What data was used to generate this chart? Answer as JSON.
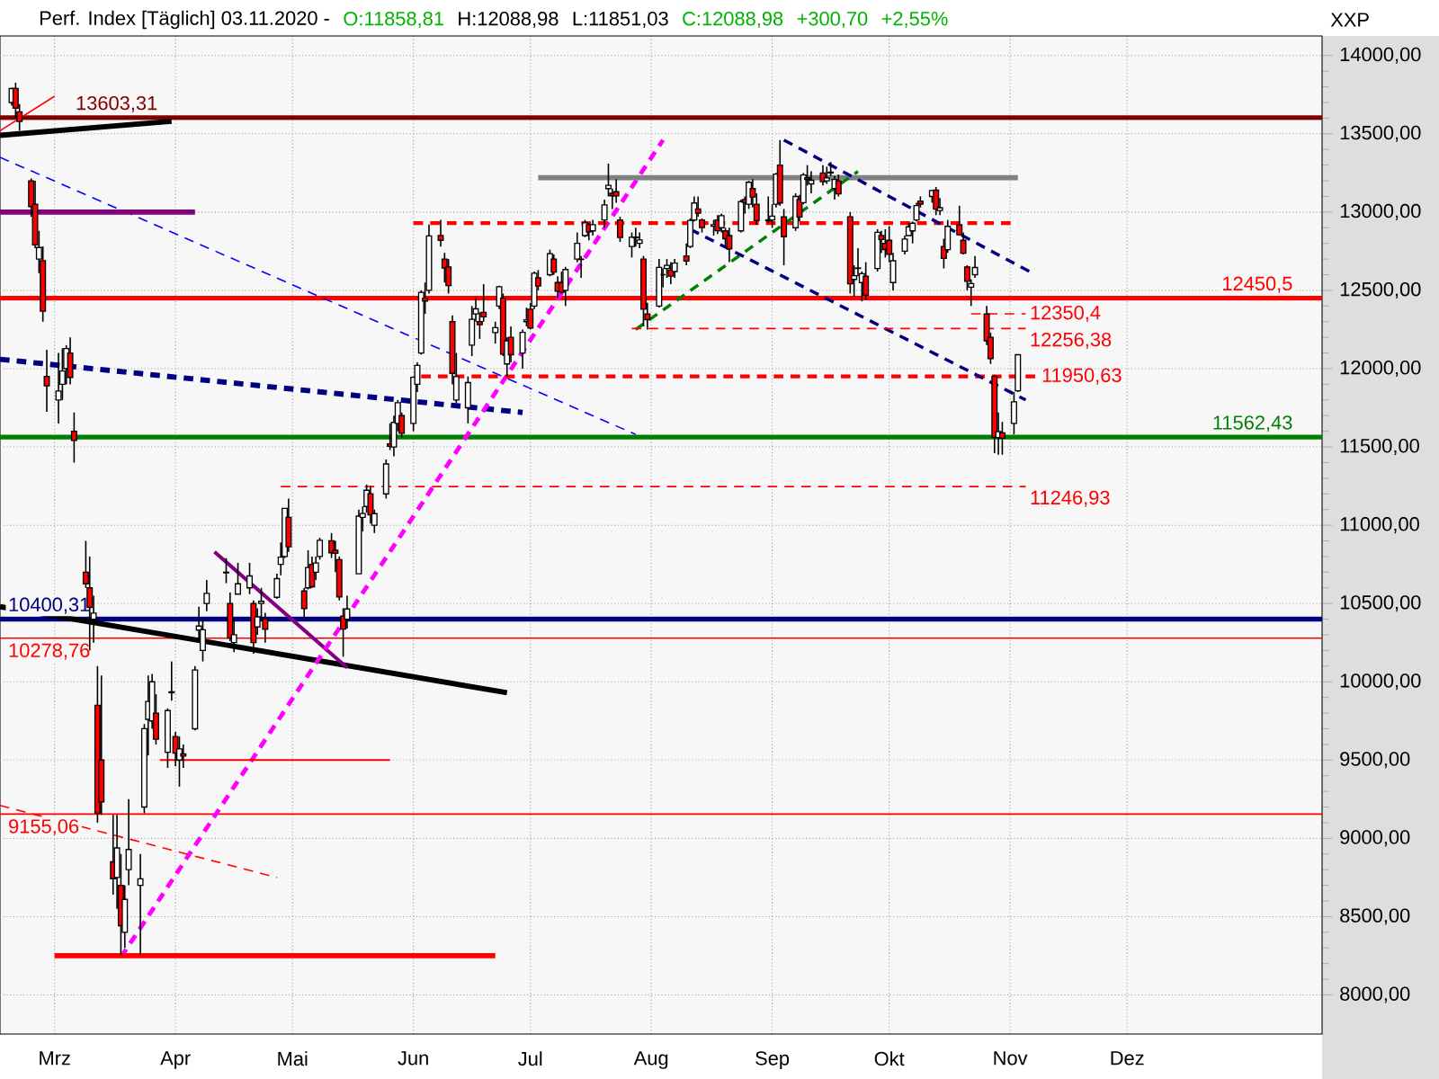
{
  "chart_data": {
    "type": "candlestick",
    "title": "Perf. Index [Täglich] 03.11.2020 -",
    "ylabel": "XXP",
    "annotations": [
      "O:11858,81",
      "H:12088,98",
      "L:11851,03",
      "C:12088,98",
      "+300,70",
      "+2,55%"
    ],
    "grid": true,
    "xlim": [
      "2020-02-16",
      "2021-01-20"
    ],
    "xticks": [
      {
        "value": "2020-03-01",
        "label": "Mrz"
      },
      {
        "value": "2020-04-01",
        "label": "Apr"
      },
      {
        "value": "2020-05-01",
        "label": "Mai"
      },
      {
        "value": "2020-06-01",
        "label": "Jun"
      },
      {
        "value": "2020-07-01",
        "label": "Jul"
      },
      {
        "value": "2020-08-01",
        "label": "Aug"
      },
      {
        "value": "2020-09-01",
        "label": "Sep"
      },
      {
        "value": "2020-10-01",
        "label": "Okt"
      },
      {
        "value": "2020-11-01",
        "label": "Nov"
      },
      {
        "value": "2020-12-01",
        "label": "Dez"
      }
    ],
    "ylim": [
      7750,
      14125
    ],
    "yticks": [
      {
        "value": 8000,
        "label": "8000,00"
      },
      {
        "value": 8500,
        "label": "8500,00"
      },
      {
        "value": 9000,
        "label": "9000,00"
      },
      {
        "value": 9500,
        "label": "9500,00"
      },
      {
        "value": 10000,
        "label": "10000,00"
      },
      {
        "value": 10500,
        "label": "10500,00"
      },
      {
        "value": 11000,
        "label": "11000,00"
      },
      {
        "value": 11500,
        "label": "11500,00"
      },
      {
        "value": 12000,
        "label": "12000,00"
      },
      {
        "value": 12500,
        "label": "12500,00"
      },
      {
        "value": 13000,
        "label": "13000,00"
      },
      {
        "value": 13500,
        "label": "13500,00"
      },
      {
        "value": 14000,
        "label": "14000,00"
      }
    ],
    "x": [
      "2020-02-19",
      "2020-02-20",
      "2020-02-21",
      "2020-02-24",
      "2020-02-25",
      "2020-02-26",
      "2020-02-27",
      "2020-02-28",
      "2020-03-02",
      "2020-03-03",
      "2020-03-04",
      "2020-03-05",
      "2020-03-06",
      "2020-03-09",
      "2020-03-10",
      "2020-03-11",
      "2020-03-12",
      "2020-03-13",
      "2020-03-16",
      "2020-03-17",
      "2020-03-18",
      "2020-03-19",
      "2020-03-20",
      "2020-03-23",
      "2020-03-24",
      "2020-03-25",
      "2020-03-26",
      "2020-03-27",
      "2020-03-30",
      "2020-03-31",
      "2020-04-01",
      "2020-04-02",
      "2020-04-03",
      "2020-04-06",
      "2020-04-07",
      "2020-04-08",
      "2020-04-09",
      "2020-04-14",
      "2020-04-15",
      "2020-04-16",
      "2020-04-17",
      "2020-04-20",
      "2020-04-21",
      "2020-04-22",
      "2020-04-23",
      "2020-04-24",
      "2020-04-27",
      "2020-04-28",
      "2020-04-29",
      "2020-04-30",
      "2020-05-04",
      "2020-05-05",
      "2020-05-06",
      "2020-05-07",
      "2020-05-08",
      "2020-05-11",
      "2020-05-12",
      "2020-05-13",
      "2020-05-14",
      "2020-05-15",
      "2020-05-18",
      "2020-05-19",
      "2020-05-20",
      "2020-05-21",
      "2020-05-22",
      "2020-05-25",
      "2020-05-26",
      "2020-05-27",
      "2020-05-28",
      "2020-05-29",
      "2020-06-01",
      "2020-06-02",
      "2020-06-03",
      "2020-06-04",
      "2020-06-05",
      "2020-06-08",
      "2020-06-09",
      "2020-06-10",
      "2020-06-11",
      "2020-06-12",
      "2020-06-15",
      "2020-06-16",
      "2020-06-17",
      "2020-06-18",
      "2020-06-19",
      "2020-06-22",
      "2020-06-23",
      "2020-06-24",
      "2020-06-25",
      "2020-06-26",
      "2020-06-29",
      "2020-06-30",
      "2020-07-01",
      "2020-07-02",
      "2020-07-03",
      "2020-07-06",
      "2020-07-07",
      "2020-07-08",
      "2020-07-09",
      "2020-07-10",
      "2020-07-13",
      "2020-07-14",
      "2020-07-15",
      "2020-07-16",
      "2020-07-17",
      "2020-07-20",
      "2020-07-21",
      "2020-07-22",
      "2020-07-23",
      "2020-07-24",
      "2020-07-27",
      "2020-07-28",
      "2020-07-29",
      "2020-07-30",
      "2020-07-31",
      "2020-08-03",
      "2020-08-04",
      "2020-08-05",
      "2020-08-06",
      "2020-08-07",
      "2020-08-10",
      "2020-08-11",
      "2020-08-12",
      "2020-08-13",
      "2020-08-14",
      "2020-08-17",
      "2020-08-18",
      "2020-08-19",
      "2020-08-20",
      "2020-08-21",
      "2020-08-24",
      "2020-08-25",
      "2020-08-26",
      "2020-08-27",
      "2020-08-28",
      "2020-08-31",
      "2020-09-01",
      "2020-09-02",
      "2020-09-03",
      "2020-09-04",
      "2020-09-07",
      "2020-09-08",
      "2020-09-09",
      "2020-09-10",
      "2020-09-11",
      "2020-09-14",
      "2020-09-15",
      "2020-09-16",
      "2020-09-17",
      "2020-09-18",
      "2020-09-21",
      "2020-09-22",
      "2020-09-23",
      "2020-09-24",
      "2020-09-25",
      "2020-09-28",
      "2020-09-29",
      "2020-09-30",
      "2020-10-01",
      "2020-10-02",
      "2020-10-05",
      "2020-10-06",
      "2020-10-07",
      "2020-10-08",
      "2020-10-09",
      "2020-10-12",
      "2020-10-13",
      "2020-10-14",
      "2020-10-15",
      "2020-10-16",
      "2020-10-19",
      "2020-10-20",
      "2020-10-21",
      "2020-10-22",
      "2020-10-23",
      "2020-10-26",
      "2020-10-27",
      "2020-10-28",
      "2020-10-29",
      "2020-10-30",
      "2020-11-02",
      "2020-11-03"
    ],
    "ohlc": [
      [
        13700,
        13795,
        13680,
        13789
      ],
      [
        13790,
        13826,
        13600,
        13664
      ],
      [
        13640,
        13690,
        13520,
        13579
      ],
      [
        13200,
        13215,
        12970,
        13035
      ],
      [
        13050,
        13200,
        12770,
        12790
      ],
      [
        12700,
        12880,
        12610,
        12774
      ],
      [
        12690,
        12780,
        12300,
        12367
      ],
      [
        11950,
        12120,
        11724,
        11890
      ],
      [
        11800,
        12100,
        11650,
        11857
      ],
      [
        11900,
        12130,
        11800,
        11985
      ],
      [
        12000,
        12150,
        11900,
        12128
      ],
      [
        12100,
        12200,
        11900,
        11944
      ],
      [
        11600,
        11720,
        11400,
        11542
      ],
      [
        10700,
        10900,
        10600,
        10625
      ],
      [
        10600,
        10800,
        10200,
        10475
      ],
      [
        10400,
        10550,
        10250,
        10439
      ],
      [
        9850,
        10100,
        9100,
        9161
      ],
      [
        9500,
        10040,
        9150,
        9232
      ],
      [
        8850,
        9150,
        8640,
        8742
      ],
      [
        8750,
        9150,
        8550,
        8939
      ],
      [
        8700,
        8900,
        8256,
        8442
      ],
      [
        8400,
        8700,
        8300,
        8610
      ],
      [
        8800,
        9250,
        8700,
        8929
      ],
      [
        8700,
        8900,
        8255,
        8741
      ],
      [
        9200,
        9730,
        9160,
        9701
      ],
      [
        9760,
        10040,
        9530,
        9874
      ],
      [
        9750,
        10050,
        9700,
        10000
      ],
      [
        9800,
        9920,
        9600,
        9633
      ],
      [
        9550,
        9830,
        9450,
        9816
      ],
      [
        9930,
        10130,
        9880,
        9936
      ],
      [
        9650,
        9680,
        9460,
        9544
      ],
      [
        9500,
        9650,
        9330,
        9571
      ],
      [
        9540,
        9600,
        9450,
        9525
      ],
      [
        9700,
        10100,
        9690,
        10075
      ],
      [
        10330,
        10480,
        10270,
        10356
      ],
      [
        10200,
        10400,
        10130,
        10332
      ],
      [
        10500,
        10650,
        10450,
        10565
      ],
      [
        10700,
        10790,
        10630,
        10696
      ],
      [
        10500,
        10570,
        10260,
        10280
      ],
      [
        10250,
        10400,
        10190,
        10301
      ],
      [
        10560,
        10760,
        10560,
        10626
      ],
      [
        10600,
        10760,
        10560,
        10676
      ],
      [
        10500,
        10520,
        10180,
        10250
      ],
      [
        10350,
        10470,
        10300,
        10415
      ],
      [
        10500,
        10600,
        10400,
        10514
      ],
      [
        10400,
        10440,
        10250,
        10336
      ],
      [
        10540,
        10690,
        10530,
        10659
      ],
      [
        10750,
        10890,
        10680,
        10796
      ],
      [
        10800,
        11110,
        10790,
        11108
      ],
      [
        11050,
        11170,
        10830,
        10862
      ],
      [
        10580,
        10600,
        10410,
        10467
      ],
      [
        10600,
        10840,
        10590,
        10730
      ],
      [
        10750,
        10800,
        10600,
        10607
      ],
      [
        10700,
        10800,
        10650,
        10759
      ],
      [
        10800,
        10920,
        10780,
        10904
      ],
      [
        10900,
        10950,
        10790,
        10824
      ],
      [
        10840,
        10900,
        10700,
        10820
      ],
      [
        10780,
        10800,
        10520,
        10542
      ],
      [
        10420,
        10470,
        10160,
        10337
      ],
      [
        10400,
        10550,
        10340,
        10465
      ],
      [
        10690,
        11100,
        10690,
        11058
      ],
      [
        11050,
        11120,
        10960,
        11075
      ],
      [
        11120,
        11260,
        11080,
        11223
      ],
      [
        11200,
        11250,
        11010,
        11066
      ],
      [
        11000,
        11100,
        10950,
        11074
      ],
      [
        11200,
        11420,
        11170,
        11391
      ],
      [
        11520,
        11650,
        11480,
        11504
      ],
      [
        11500,
        11700,
        11440,
        11657
      ],
      [
        11650,
        11800,
        11600,
        11782
      ],
      [
        11700,
        11720,
        11560,
        11587
      ],
      [
        11650,
        11950,
        11600,
        11945
      ],
      [
        11900,
        12040,
        11850,
        12021
      ],
      [
        12100,
        12500,
        12090,
        12487
      ],
      [
        12450,
        12550,
        12350,
        12431
      ],
      [
        12500,
        12920,
        12480,
        12848
      ],
      [
        12850,
        12950,
        12780,
        12820
      ],
      [
        12700,
        12740,
        12550,
        12642
      ],
      [
        12650,
        12700,
        12480,
        12530
      ],
      [
        12300,
        12340,
        11900,
        11970
      ],
      [
        11800,
        12100,
        11780,
        11949
      ],
      [
        11750,
        11950,
        11650,
        11911
      ],
      [
        12150,
        12400,
        12080,
        12315
      ],
      [
        12350,
        12450,
        12300,
        12382
      ],
      [
        12300,
        12360,
        12190,
        12281
      ],
      [
        12360,
        12540,
        12300,
        12331
      ],
      [
        12230,
        12300,
        12160,
        12262
      ],
      [
        12400,
        12530,
        12380,
        12523
      ],
      [
        12450,
        12480,
        12080,
        12093
      ],
      [
        12030,
        12200,
        11950,
        12178
      ],
      [
        12200,
        12270,
        12040,
        12089
      ],
      [
        12100,
        12250,
        12000,
        12232
      ],
      [
        12300,
        12390,
        12270,
        12311
      ],
      [
        12380,
        12420,
        12250,
        12260
      ],
      [
        12400,
        12620,
        12380,
        12609
      ],
      [
        12580,
        12630,
        12500,
        12528
      ],
      [
        12600,
        12760,
        12590,
        12734
      ],
      [
        12700,
        12730,
        12600,
        12617
      ],
      [
        12550,
        12590,
        12450,
        12495
      ],
      [
        12550,
        12620,
        12480,
        12489
      ],
      [
        12500,
        12650,
        12400,
        12633
      ],
      [
        12700,
        12870,
        12680,
        12800
      ],
      [
        12700,
        12720,
        12580,
        12697
      ],
      [
        12850,
        12950,
        12840,
        12931
      ],
      [
        12920,
        12930,
        12820,
        12874
      ],
      [
        12880,
        12950,
        12850,
        12920
      ],
      [
        12950,
        13080,
        12900,
        13046
      ],
      [
        13150,
        13310,
        13100,
        13171
      ],
      [
        13120,
        13150,
        13020,
        13104
      ],
      [
        13130,
        13210,
        13060,
        13103
      ],
      [
        12950,
        12970,
        12810,
        12838
      ],
      [
        12780,
        12870,
        12710,
        12839
      ],
      [
        12840,
        12900,
        12780,
        12836
      ],
      [
        12800,
        12870,
        12770,
        12822
      ],
      [
        12700,
        12720,
        12270,
        12380
      ],
      [
        12350,
        12420,
        12250,
        12313
      ],
      [
        12400,
        12700,
        12390,
        12647
      ],
      [
        12600,
        12640,
        12520,
        12600
      ],
      [
        12640,
        12700,
        12580,
        12660
      ],
      [
        12630,
        12680,
        12540,
        12591
      ],
      [
        12620,
        12700,
        12580,
        12674
      ],
      [
        12720,
        12800,
        12660,
        12687
      ],
      [
        12780,
        12960,
        12770,
        12947
      ],
      [
        12950,
        13100,
        12940,
        13058
      ],
      [
        13020,
        13100,
        12970,
        12993
      ],
      [
        12950,
        12960,
        12870,
        12901
      ],
      [
        12910,
        12950,
        12850,
        12920
      ],
      [
        12950,
        12980,
        12860,
        12881
      ],
      [
        12900,
        12990,
        12870,
        12977
      ],
      [
        12880,
        12900,
        12780,
        12830
      ],
      [
        12850,
        12900,
        12680,
        12765
      ],
      [
        12880,
        13080,
        12870,
        13067
      ],
      [
        13080,
        13100,
        12990,
        13062
      ],
      [
        13050,
        13200,
        13020,
        13190
      ],
      [
        13150,
        13210,
        13030,
        13096
      ],
      [
        13050,
        13120,
        12920,
        12945
      ],
      [
        12950,
        13100,
        12930,
        12945
      ],
      [
        12950,
        13050,
        12900,
        12974
      ],
      [
        13050,
        13250,
        13030,
        13243
      ],
      [
        13300,
        13460,
        13040,
        13058
      ],
      [
        12970,
        13020,
        12660,
        12843
      ],
      [
        12900,
        13120,
        12880,
        13100
      ],
      [
        13080,
        13110,
        12940,
        12968
      ],
      [
        13060,
        13250,
        13050,
        13237
      ],
      [
        13220,
        13300,
        13170,
        13209
      ],
      [
        13180,
        13260,
        13120,
        13203
      ],
      [
        13250,
        13300,
        13170,
        13194
      ],
      [
        13200,
        13290,
        13180,
        13218
      ],
      [
        13250,
        13320,
        13230,
        13255
      ],
      [
        13150,
        13230,
        13080,
        13208
      ],
      [
        13200,
        13240,
        13100,
        13116
      ],
      [
        12970,
        13000,
        12480,
        12542
      ],
      [
        12570,
        12660,
        12460,
        12594
      ],
      [
        12640,
        12770,
        12590,
        12643
      ],
      [
        12550,
        12620,
        12430,
        12607
      ],
      [
        12590,
        12680,
        12440,
        12469
      ],
      [
        12640,
        12890,
        12620,
        12871
      ],
      [
        12850,
        12880,
        12740,
        12825
      ],
      [
        12800,
        12890,
        12710,
        12761
      ],
      [
        12820,
        12910,
        12680,
        12731
      ],
      [
        12550,
        12740,
        12500,
        12689
      ],
      [
        12750,
        12850,
        12730,
        12828
      ],
      [
        12850,
        12930,
        12850,
        12906
      ],
      [
        12880,
        12940,
        12800,
        12929
      ],
      [
        12950,
        13060,
        12940,
        13042
      ],
      [
        13070,
        13100,
        13030,
        13051
      ],
      [
        13100,
        13140,
        13060,
        13138
      ],
      [
        13140,
        13160,
        12980,
        13019
      ],
      [
        13010,
        13090,
        12980,
        13028
      ],
      [
        12780,
        12830,
        12640,
        12704
      ],
      [
        12760,
        12950,
        12740,
        12909
      ],
      [
        12920,
        13040,
        12850,
        12855
      ],
      [
        12820,
        12870,
        12730,
        12737
      ],
      [
        12650,
        12660,
        12500,
        12558
      ],
      [
        12520,
        12570,
        12400,
        12543
      ],
      [
        12600,
        12720,
        12580,
        12646
      ],
      [
        12350,
        12400,
        12150,
        12178
      ],
      [
        12200,
        12230,
        12030,
        12064
      ],
      [
        11950,
        11960,
        11460,
        11561
      ],
      [
        11560,
        11720,
        11450,
        11598
      ],
      [
        11590,
        11660,
        11450,
        11556
      ],
      [
        11650,
        11850,
        11580,
        11788
      ],
      [
        11858.81,
        12088.98,
        11851.03,
        12088.98
      ]
    ],
    "ref_lines": [
      {
        "axis": "y",
        "value": 13603.31,
        "label": "13603,31",
        "color": "#800000"
      },
      {
        "axis": "y",
        "value": 12450.5,
        "label": "12450,5",
        "color": "#ff0000"
      },
      {
        "axis": "y",
        "value": 11562.43,
        "label": "11562,43",
        "color": "#008000"
      },
      {
        "axis": "y",
        "value": 10400.31,
        "label": "10400,31",
        "color": "#000080"
      },
      {
        "axis": "y",
        "value": 10278.76,
        "label": "10278,76",
        "color": "#ff0000"
      },
      {
        "axis": "y",
        "value": 9155.06,
        "label": "9155,06",
        "color": "#ff0000"
      }
    ],
    "series": [
      {
        "type": "line",
        "x": [
          "2020-02-16",
          "2020-03-31"
        ],
        "values": [
          13490,
          13580
        ],
        "color": "#000000",
        "line_style": "solid"
      },
      {
        "type": "line",
        "x": [
          "2020-02-16",
          "2020-03-01"
        ],
        "values": [
          13520,
          13740
        ],
        "color": "#ff0000",
        "line_style": "solid"
      },
      {
        "type": "line",
        "x": [
          "2020-02-16",
          "2020-07-28"
        ],
        "values": [
          13350,
          11580
        ],
        "color": "#0000ff",
        "line_style": "dashed"
      },
      {
        "type": "line",
        "x": [
          "2020-02-16",
          "2020-04-06"
        ],
        "values": [
          13000,
          13000
        ],
        "color": "#800080",
        "line_style": "solid"
      },
      {
        "type": "line",
        "x": [
          "2020-02-16",
          "2020-06-29"
        ],
        "values": [
          12060,
          11720
        ],
        "color": "#000080",
        "line_style": "dashed"
      },
      {
        "type": "line",
        "x": [
          "2020-02-16",
          "2020-06-25"
        ],
        "values": [
          10480,
          9930
        ],
        "color": "#000000",
        "line_style": "solid"
      },
      {
        "type": "line",
        "x": [
          "2020-04-11",
          "2020-05-15"
        ],
        "values": [
          10830,
          10090
        ],
        "color": "#800080",
        "line_style": "solid"
      },
      {
        "type": "line",
        "x": [
          "2020-03-18",
          "2020-08-04"
        ],
        "values": [
          8240,
          13460
        ],
        "color": "#ff00ff",
        "line_style": "dashed"
      },
      {
        "type": "line",
        "x": [
          "2020-03-28",
          "2020-05-26"
        ],
        "values": [
          9500,
          9500
        ],
        "color": "#ff0000",
        "line_style": "solid"
      },
      {
        "type": "line",
        "x": [
          "2020-02-16",
          "2020-04-27"
        ],
        "values": [
          9210,
          8750
        ],
        "color": "#ff0000",
        "line_style": "dashed"
      },
      {
        "type": "line",
        "x": [
          "2020-03-01",
          "2020-06-22"
        ],
        "values": [
          8250,
          8250
        ],
        "color": "#ff0000",
        "line_style": "solid"
      },
      {
        "type": "line",
        "name": "11246,93",
        "x": [
          "2020-04-28",
          "2020-11-05"
        ],
        "values": [
          11246.93,
          11246.93
        ],
        "color": "#ff0000",
        "line_style": "dashed"
      },
      {
        "type": "line",
        "name": "11950,63",
        "x": [
          "2020-06-03",
          "2020-11-08"
        ],
        "values": [
          11950.63,
          11950.63
        ],
        "color": "#ff0000",
        "line_style": "dashed"
      },
      {
        "type": "line",
        "x": [
          "2020-06-01",
          "2020-11-03"
        ],
        "values": [
          12930,
          12930
        ],
        "color": "#ff0000",
        "line_style": "dashed"
      },
      {
        "type": "line",
        "x": [
          "2020-07-03",
          "2020-11-03"
        ],
        "values": [
          13220,
          13220
        ],
        "color": "#808080",
        "line_style": "solid"
      },
      {
        "type": "line",
        "x": [
          "2020-07-28",
          "2020-09-23"
        ],
        "values": [
          12250,
          13260
        ],
        "color": "#008000",
        "line_style": "dashed"
      },
      {
        "type": "line",
        "x": [
          "2020-09-04",
          "2020-11-06"
        ],
        "values": [
          13460,
          12620
        ],
        "color": "#000080",
        "line_style": "dashed"
      },
      {
        "type": "line",
        "x": [
          "2020-08-11",
          "2020-11-05"
        ],
        "values": [
          12890,
          11800
        ],
        "color": "#000080",
        "line_style": "dashed"
      },
      {
        "type": "line",
        "name": "12256,38",
        "x": [
          "2020-07-27",
          "2020-11-05"
        ],
        "values": [
          12256.38,
          12256.38
        ],
        "color": "#ff0000",
        "line_style": "dashed"
      },
      {
        "type": "line",
        "name": "12350,4",
        "x": [
          "2020-10-22",
          "2020-11-05"
        ],
        "values": [
          12350.4,
          12350.4
        ],
        "color": "#ff0000",
        "line_style": "dashed"
      }
    ]
  }
}
